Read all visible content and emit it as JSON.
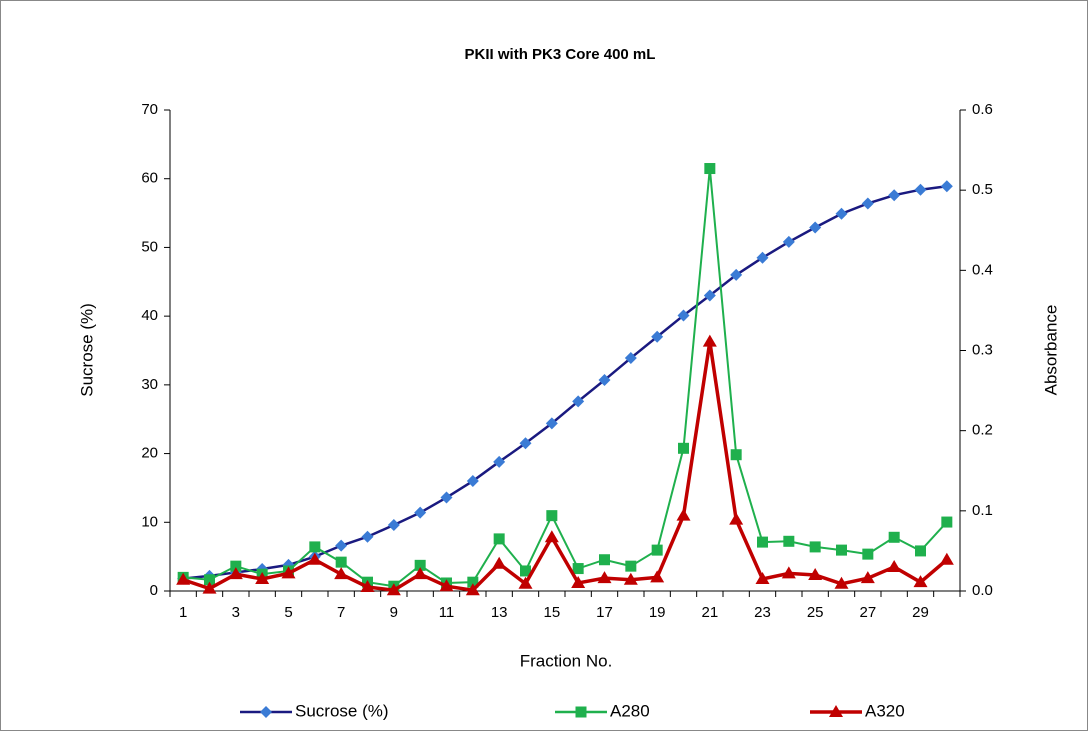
{
  "chart_data": {
    "type": "line",
    "title": "PKII with PK3 Core 400 mL",
    "x_label": "Fraction No.",
    "y_label": "Sucrose (%)",
    "y2_label": "Absorbance",
    "categories": [
      1,
      null,
      3,
      null,
      5,
      null,
      7,
      null,
      9,
      null,
      11,
      null,
      13,
      null,
      15,
      null,
      17,
      null,
      19,
      null,
      21,
      null,
      23,
      null,
      25,
      null,
      27,
      null,
      29,
      null
    ],
    "ylim": [
      0,
      70
    ],
    "yticks": [
      0,
      10,
      20,
      30,
      40,
      50,
      60,
      70
    ],
    "y2lim": [
      0,
      0.6
    ],
    "y2ticks": [
      {
        "value": 0,
        "label": "0.0"
      },
      0.1,
      0.2,
      0.3,
      0.4,
      0.5,
      0.6
    ],
    "grid": false,
    "legend": "bottom",
    "series": [
      {
        "name": "Sucrose (%)",
        "color": "#1a1a80",
        "marker_color": "#3a7bd5",
        "marker": "diamond",
        "values": [
          1.8,
          2.2,
          2.7,
          3.2,
          3.8,
          5.0,
          6.6,
          7.9,
          9.6,
          11.4,
          13.6,
          16.0,
          18.8,
          21.5,
          24.4,
          27.6,
          30.7,
          33.9,
          37.0,
          40.1,
          43.0,
          46.0,
          48.5,
          50.8,
          52.9,
          54.9,
          56.4,
          57.6,
          58.4,
          58.9
        ]
      },
      {
        "name": "A280",
        "color": "#1fb04d",
        "marker_color": "#1fb04d",
        "marker": "square",
        "axis": "y2",
        "values": [
          0.017,
          0.014,
          0.031,
          0.021,
          0.025,
          0.055,
          0.036,
          0.011,
          0.006,
          0.032,
          0.01,
          0.011,
          0.065,
          0.025,
          0.094,
          0.028,
          0.039,
          0.031,
          0.051,
          0.178,
          0.527,
          0.17,
          0.061,
          0.062,
          0.055,
          0.051,
          0.046,
          0.067,
          0.05,
          0.086
        ]
      },
      {
        "name": "A320",
        "color": "#c00000",
        "marker_color": "#c00000",
        "marker": "triangle",
        "axis": "y2",
        "values": [
          0.014,
          0.003,
          0.021,
          0.015,
          0.022,
          0.039,
          0.021,
          0.005,
          0.001,
          0.021,
          0.006,
          0.001,
          0.034,
          0.009,
          0.067,
          0.01,
          0.016,
          0.014,
          0.017,
          0.094,
          0.311,
          0.089,
          0.015,
          0.022,
          0.02,
          0.009,
          0.016,
          0.03,
          0.011,
          0.039
        ]
      }
    ]
  }
}
